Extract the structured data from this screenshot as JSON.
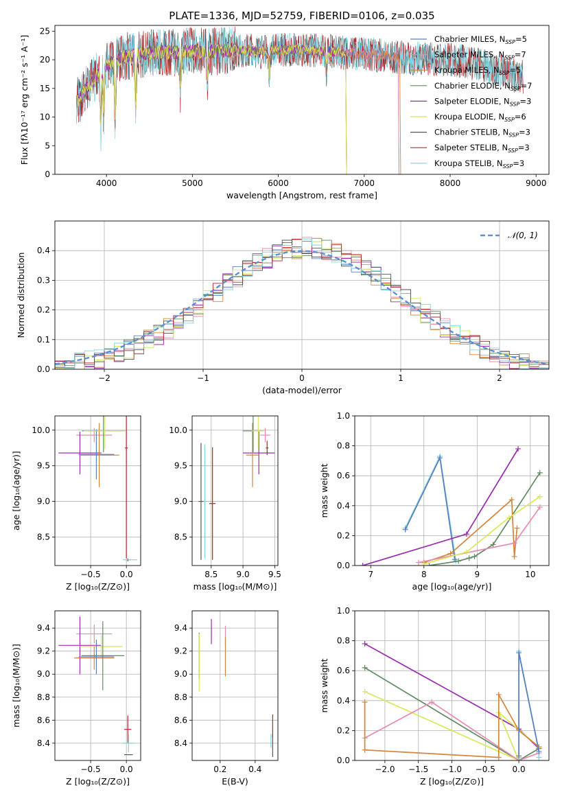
{
  "figure": {
    "title": "PLATE=1336, MJD=52759, FIBERID=0106, z=0.035"
  },
  "chart_data": [
    {
      "id": "spectrum",
      "type": "line",
      "title": "PLATE=1336, MJD=52759, FIBERID=0106, z=0.035",
      "xlabel": "wavelength [Angstrom, rest frame]",
      "ylabel": "Flux [fλ10⁻¹⁷ erg cm⁻² s⁻¹ A⁻¹]",
      "xlim": [
        3400,
        9150
      ],
      "ylim": [
        0,
        26
      ],
      "xticks": [
        4000,
        5000,
        6000,
        7000,
        8000,
        9000
      ],
      "yticks": [
        0,
        5,
        10,
        15,
        20,
        25
      ],
      "grid": false,
      "legend_position": "top-right",
      "continuum": {
        "x": [
          3650,
          3700,
          3800,
          3900,
          4000,
          4100,
          4200,
          4300,
          4400,
          4500,
          4600,
          4700,
          4800,
          4900,
          5000,
          5200,
          5400,
          5600,
          5800,
          6000,
          6200,
          6400,
          6600,
          6800,
          7000,
          7200,
          7400,
          7600,
          7800,
          8000,
          8200,
          8400,
          8600,
          8800
        ],
        "y": [
          12.5,
          13.5,
          15.5,
          17.5,
          19.0,
          19.8,
          20.5,
          20.8,
          21.0,
          21.2,
          21.4,
          21.3,
          21.2,
          21.5,
          21.5,
          21.4,
          21.6,
          21.6,
          21.4,
          21.8,
          21.8,
          21.6,
          21.5,
          21.2,
          21.0,
          20.8,
          20.5,
          20.3,
          20.1,
          20.0,
          19.6,
          19.0,
          18.0,
          17.0
        ]
      },
      "absorption_lines": [
        {
          "x": 3934,
          "y": 8.0
        },
        {
          "x": 3969,
          "y": 10.5
        },
        {
          "x": 4102,
          "y": 9.0
        },
        {
          "x": 4340,
          "y": 11.5
        },
        {
          "x": 4861,
          "y": 14.5
        },
        {
          "x": 5175,
          "y": 16.5
        },
        {
          "x": 5892,
          "y": 17.5
        },
        {
          "x": 6563,
          "y": 18.0
        }
      ],
      "series": [
        {
          "name": "Chabrier MILES, N_SSP=5",
          "label_main": "Chabrier MILES, N",
          "label_sub": "SSP",
          "label_tail": "=5",
          "color": "#5b7fbe",
          "xmax": 7400
        },
        {
          "name": "Salpeter MILES, N_SSP=7",
          "label_main": "Salpeter MILES, N",
          "label_sub": "SSP",
          "label_tail": "=7",
          "color": "#e88ab0",
          "xmax": 7400
        },
        {
          "name": "Kroupa MILES, N_SSP=5",
          "label_main": "Kroupa MILES, N",
          "label_sub": "SSP",
          "label_tail": "=5",
          "color": "#d2843c",
          "xmax": 7420
        },
        {
          "name": "Chabrier ELODIE, N_SSP=7",
          "label_main": "Chabrier ELODIE, N",
          "label_sub": "SSP",
          "label_tail": "=7",
          "color": "#5e8a62",
          "xmax": 6790
        },
        {
          "name": "Salpeter ELODIE, N_SSP=3",
          "label_main": "Salpeter ELODIE, N",
          "label_sub": "SSP",
          "label_tail": "=3",
          "color": "#9a2bb0",
          "xmax": 6790
        },
        {
          "name": "Kroupa ELODIE, N_SSP=6",
          "label_main": "Kroupa ELODIE, N",
          "label_sub": "SSP",
          "label_tail": "=6",
          "color": "#d8e85a",
          "xmax": 6790
        },
        {
          "name": "Chabrier STELIB, N_SSP=3",
          "label_main": "Chabrier STELIB, N",
          "label_sub": "SSP",
          "label_tail": "=3",
          "color": "#555555",
          "xmax": 8850
        },
        {
          "name": "Salpeter STELIB, N_SSP=3",
          "label_main": "Salpeter STELIB, N",
          "label_sub": "SSP",
          "label_tail": "=3",
          "color": "#b3262a",
          "xmax": 8850
        },
        {
          "name": "Kroupa STELIB, N_SSP=3",
          "label_main": "Kroupa STELIB, N",
          "label_sub": "SSP",
          "label_tail": "=3",
          "color": "#7fd3df",
          "xmax": 8850
        }
      ]
    },
    {
      "id": "residuals",
      "type": "line",
      "xlabel": "(data-model)/error",
      "ylabel": "Normed distribution",
      "xlim": [
        -2.5,
        2.5
      ],
      "ylim": [
        0,
        0.5
      ],
      "xticks": [
        -2,
        -1,
        0,
        1,
        2
      ],
      "yticks": [
        0.0,
        0.1,
        0.2,
        0.3,
        0.4
      ],
      "grid": true,
      "legend_position": "top-right",
      "reference_curve": {
        "name": "N(0,1)",
        "label": "𝒩(0, 1)",
        "color": "#5b8fd6",
        "style": "dashed"
      },
      "histogram_series_colors": [
        "#5b7fbe",
        "#e88ab0",
        "#d2843c",
        "#5e8a62",
        "#9a2bb0",
        "#d8e85a",
        "#555555",
        "#b3262a",
        "#7fd3df"
      ]
    },
    {
      "id": "age-vs-Z",
      "type": "scatter",
      "xlabel": "Z [log₁₀(Z/Z⊙)]",
      "ylabel": "age  [log₁₀(age/yr)]",
      "xlim": [
        -1.0,
        0.2
      ],
      "ylim": [
        8.1,
        10.2
      ],
      "xticks": [
        -0.5,
        0.0
      ],
      "yticks": [
        8.5,
        9.0,
        9.5,
        10.0
      ],
      "grid": true,
      "points": [
        {
          "color": "#e88ab0",
          "x": -0.45,
          "xerr": 0.25,
          "y": 9.93,
          "yerr": 0.1
        },
        {
          "color": "#9a2bb0",
          "x": -0.65,
          "xerr": 0.3,
          "y": 9.68,
          "yerr": 0.3
        },
        {
          "color": "#d2843c",
          "x": -0.38,
          "xerr": 0.28,
          "y": 9.65,
          "yerr": 0.45
        },
        {
          "color": "#5b7fbe",
          "x": -0.42,
          "xerr": 0.25,
          "y": 9.66,
          "yerr": 0.35
        },
        {
          "color": "#5e8a62",
          "x": -0.32,
          "xerr": 0.3,
          "y": 9.99,
          "yerr": 0.3
        },
        {
          "color": "#d8e85a",
          "x": -0.3,
          "xerr": 0.3,
          "y": 9.99,
          "yerr": 0.25
        },
        {
          "color": "#555555",
          "x": 0.02,
          "xerr": 0.02,
          "y": 8.18,
          "yerr": 0.02
        },
        {
          "color": "#b3262a",
          "x": 0.0,
          "xerr": 0.02,
          "y": 9.75,
          "yerr": 1.55
        },
        {
          "color": "#7fd3df",
          "x": 0.05,
          "xerr": 0.1,
          "y": 8.18,
          "yerr": 0.01
        }
      ]
    },
    {
      "id": "age-vs-mass",
      "type": "scatter",
      "xlabel": "mass [log₁₀(M/M⊙)]",
      "ylabel": "",
      "xlim": [
        8.2,
        9.55
      ],
      "ylim": [
        8.1,
        10.2
      ],
      "xticks": [
        8.5,
        9.0,
        9.5
      ],
      "yticks": [
        8.5,
        9.0,
        9.5,
        10.0
      ],
      "grid": true,
      "points": [
        {
          "color": "#e88ab0",
          "x": 9.35,
          "xerr": 0.08,
          "y": 9.93,
          "yerr": 0.1
        },
        {
          "color": "#9a2bb0",
          "x": 9.25,
          "xerr": 0.25,
          "y": 9.68,
          "yerr": 0.3
        },
        {
          "color": "#d2843c",
          "x": 9.15,
          "xerr": 0.1,
          "y": 9.65,
          "yerr": 0.45
        },
        {
          "color": "#5e8a62",
          "x": 9.16,
          "xerr": 0.16,
          "y": 9.99,
          "yerr": 0.3
        },
        {
          "color": "#d8e85a",
          "x": 9.24,
          "xerr": 0.1,
          "y": 9.99,
          "yerr": 0.25
        },
        {
          "color": "#555555",
          "x": 8.34,
          "xerr": 0.04,
          "y": 9.0,
          "yerr": 0.82
        },
        {
          "color": "#7fd3df",
          "x": 8.4,
          "xerr": 0.02,
          "y": 9.0,
          "yerr": 0.8
        },
        {
          "color": "#b3262a",
          "x": 8.52,
          "xerr": 0.05,
          "y": 8.97,
          "yerr": 0.79
        },
        {
          "color": "#b3262a",
          "x": 9.38,
          "xerr": 0.02,
          "y": 9.75,
          "yerr": 0.1
        }
      ]
    },
    {
      "id": "weight-vs-age",
      "type": "line",
      "xlabel": "age  [log₁₀(age/yr)]",
      "ylabel": "mass weight",
      "xlim": [
        6.7,
        10.35
      ],
      "ylim": [
        0,
        1.0
      ],
      "xticks": [
        7,
        8,
        9,
        10
      ],
      "yticks": [
        0.0,
        0.2,
        0.4,
        0.6,
        0.8,
        1.0
      ],
      "grid": true,
      "series": [
        {
          "color": "#7fd3df",
          "x": [
            7.65,
            8.3,
            8.6
          ],
          "y": [
            0.25,
            0.73,
            0.03
          ]
        },
        {
          "color": "#5b7fbe",
          "x": [
            7.65,
            8.3,
            8.58
          ],
          "y": [
            0.24,
            0.72,
            0.04
          ]
        },
        {
          "color": "#9a2bb0",
          "x": [
            6.85,
            8.8,
            9.77
          ],
          "y": [
            0.0,
            0.21,
            0.78
          ]
        },
        {
          "color": "#5e8a62",
          "x": [
            8.1,
            8.65,
            8.85,
            8.95,
            9.3,
            10.18
          ],
          "y": [
            0.0,
            0.03,
            0.05,
            0.06,
            0.14,
            0.62
          ]
        },
        {
          "color": "#d2843c",
          "x": [
            8.0,
            8.5,
            9.65,
            9.7,
            9.75
          ],
          "y": [
            0.02,
            0.08,
            0.44,
            0.06,
            0.25
          ]
        },
        {
          "color": "#e88ab0",
          "x": [
            7.9,
            9.7,
            10.18
          ],
          "y": [
            0.02,
            0.15,
            0.39
          ]
        },
        {
          "color": "#d8e85a",
          "x": [
            8.0,
            8.8,
            9.6,
            10.18
          ],
          "y": [
            0.01,
            0.09,
            0.32,
            0.46
          ]
        }
      ]
    },
    {
      "id": "mass-vs-Z",
      "type": "scatter",
      "xlabel": "Z [log₁₀(Z/Z⊙)]",
      "ylabel": "mass [log₁₀(M/M⊙)]",
      "xlim": [
        -1.0,
        0.2
      ],
      "ylim": [
        8.25,
        9.55
      ],
      "xticks": [
        -0.5,
        0.0
      ],
      "yticks": [
        8.4,
        8.6,
        8.8,
        9.0,
        9.2,
        9.4
      ],
      "grid": true,
      "points": [
        {
          "color": "#e88ab0",
          "x": -0.45,
          "xerr": 0.25,
          "y": 9.35,
          "yerr": 0.08
        },
        {
          "color": "#9a2bb0",
          "x": -0.65,
          "xerr": 0.3,
          "y": 9.25,
          "yerr": 0.25
        },
        {
          "color": "#d8e85a",
          "x": -0.35,
          "xerr": 0.3,
          "y": 9.24,
          "yerr": 0.1
        },
        {
          "color": "#d2843c",
          "x": -0.45,
          "xerr": 0.28,
          "y": 9.14,
          "yerr": 0.1
        },
        {
          "color": "#5b7fbe",
          "x": -0.42,
          "xerr": 0.25,
          "y": 9.15,
          "yerr": 0.15
        },
        {
          "color": "#5e8a62",
          "x": -0.33,
          "xerr": 0.3,
          "y": 9.16,
          "yerr": 0.3
        },
        {
          "color": "#b3262a",
          "x": 0.02,
          "xerr": 0.05,
          "y": 8.52,
          "yerr": 0.12
        },
        {
          "color": "#7fd3df",
          "x": 0.03,
          "xerr": 0.08,
          "y": 8.4,
          "yerr": 0.08
        },
        {
          "color": "#555555",
          "x": 0.03,
          "xerr": 0.06,
          "y": 8.3,
          "yerr": 0.0
        }
      ]
    },
    {
      "id": "mass-vs-ebv",
      "type": "scatter",
      "xlabel": "E(B-V)",
      "ylabel": "",
      "xlim": [
        0.04,
        0.53
      ],
      "ylim": [
        8.25,
        9.55
      ],
      "xticks": [
        0.2,
        0.4
      ],
      "yticks": [
        8.4,
        8.6,
        8.8,
        9.0,
        9.2,
        9.4
      ],
      "grid": true,
      "points": [
        {
          "color": "#5e8a62",
          "x": 0.08,
          "y": 9.16,
          "yerr": 0.2
        },
        {
          "color": "#d8e85a",
          "x": 0.08,
          "y": 9.1,
          "yerr": 0.25
        },
        {
          "color": "#9a2bb0",
          "x": 0.15,
          "y": 9.37,
          "yerr": 0.11
        },
        {
          "color": "#e88ab0",
          "x": 0.23,
          "y": 9.34,
          "yerr": 0.08
        },
        {
          "color": "#d2843c",
          "x": 0.23,
          "y": 9.15,
          "yerr": 0.17
        },
        {
          "color": "#b3262a",
          "x": 0.5,
          "y": 8.55,
          "yerr": 0.1
        },
        {
          "color": "#555555",
          "x": 0.5,
          "y": 8.38,
          "yerr": 0.1
        },
        {
          "color": "#7fd3df",
          "x": 0.49,
          "y": 8.42,
          "yerr": 0.06
        }
      ]
    },
    {
      "id": "weight-vs-Z",
      "type": "line",
      "xlabel": "Z [log₁₀(Z/Z⊙)]",
      "ylabel": "mass weight",
      "xlim": [
        -2.45,
        0.45
      ],
      "ylim": [
        0,
        1.0
      ],
      "xticks": [
        -2.0,
        -1.5,
        -1.0,
        -0.5,
        0.0
      ],
      "yticks": [
        0.0,
        0.2,
        0.4,
        0.6,
        0.8,
        1.0
      ],
      "grid": true,
      "series": [
        {
          "color": "#9a2bb0",
          "x": [
            -2.3,
            0.0,
            0.3
          ],
          "y": [
            0.78,
            0.21,
            0.08
          ]
        },
        {
          "color": "#5e8a62",
          "x": [
            -2.3,
            0.0,
            0.3
          ],
          "y": [
            0.62,
            0.0,
            0.08
          ]
        },
        {
          "color": "#d8e85a",
          "x": [
            -2.3,
            0.0,
            -0.3,
            0.3
          ],
          "y": [
            0.46,
            0.0,
            0.32,
            0.09
          ]
        },
        {
          "color": "#e88ab0",
          "x": [
            -2.3,
            -1.3,
            0.0,
            0.3
          ],
          "y": [
            0.15,
            0.39,
            0.0,
            0.05
          ]
        },
        {
          "color": "#d2843c",
          "x": [
            -2.3,
            -2.3,
            -0.3,
            -0.3,
            0.0,
            0.3
          ],
          "y": [
            0.39,
            0.07,
            0.02,
            0.44,
            0.2,
            0.09
          ]
        },
        {
          "color": "#7fd3df",
          "x": [
            0.0,
            0.0,
            0.3,
            0.3
          ],
          "y": [
            0.02,
            0.73,
            0.06,
            0.02
          ]
        },
        {
          "color": "#5b7fbe",
          "x": [
            0.0,
            0.0,
            0.3
          ],
          "y": [
            0.03,
            0.72,
            0.06
          ]
        }
      ]
    }
  ]
}
